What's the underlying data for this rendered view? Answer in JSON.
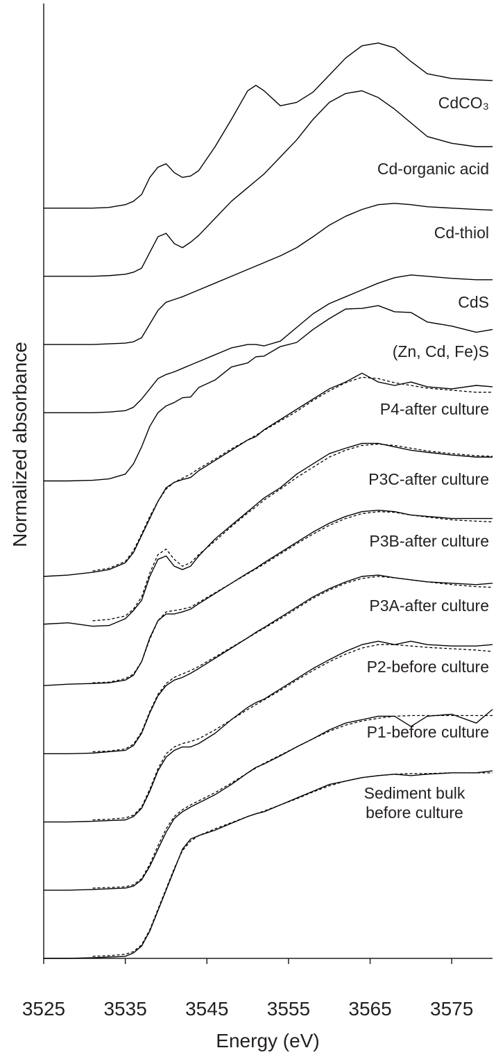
{
  "chart_data": {
    "type": "line",
    "x_label": "Energy (eV)",
    "y_label": "Normalized absorbance",
    "xlim": [
      3525,
      3580
    ],
    "ylim": [
      1,
      15
    ],
    "xticks": [
      3525,
      3535,
      3545,
      3555,
      3565,
      3575
    ],
    "color": "#000000",
    "x": [
      3525,
      3528,
      3531,
      3533,
      3535,
      3536,
      3537,
      3538,
      3539,
      3540,
      3541,
      3542,
      3543,
      3544,
      3546,
      3548,
      3550,
      3551,
      3552,
      3554,
      3556,
      3558,
      3560,
      3562,
      3564,
      3566,
      3568,
      3570,
      3572,
      3575,
      3578,
      3580
    ],
    "series": [
      {
        "name": "CdCO₃",
        "values": [
          12,
          12,
          12,
          12.01,
          12.05,
          12.1,
          12.2,
          12.45,
          12.6,
          12.65,
          12.52,
          12.45,
          12.47,
          12.55,
          12.9,
          13.3,
          13.72,
          13.8,
          13.72,
          13.5,
          13.55,
          13.7,
          13.95,
          14.2,
          14.38,
          14.42,
          14.35,
          14.15,
          13.97,
          13.9,
          13.88,
          13.87
        ]
      },
      {
        "name": "Cd-organic acid",
        "values": [
          11,
          11,
          11,
          11.01,
          11.03,
          11.06,
          11.12,
          11.35,
          11.58,
          11.63,
          11.48,
          11.42,
          11.5,
          11.6,
          11.85,
          12.1,
          12.3,
          12.4,
          12.5,
          12.75,
          13,
          13.3,
          13.55,
          13.68,
          13.72,
          13.62,
          13.45,
          13.25,
          13.05,
          12.95,
          12.9,
          12.9
        ]
      },
      {
        "name": "Cd-thiol",
        "values": [
          10,
          10,
          10,
          10.01,
          10.02,
          10.04,
          10.1,
          10.3,
          10.5,
          10.62,
          10.66,
          10.7,
          10.75,
          10.8,
          10.9,
          11,
          11.1,
          11.15,
          11.2,
          11.3,
          11.42,
          11.58,
          11.75,
          11.88,
          11.98,
          12.05,
          12.07,
          12.05,
          12.02,
          12,
          11.98,
          11.97
        ]
      },
      {
        "name": "CdS",
        "values": [
          9,
          9,
          9,
          9.01,
          9.03,
          9.08,
          9.2,
          9.35,
          9.5,
          9.56,
          9.6,
          9.65,
          9.7,
          9.75,
          9.85,
          9.95,
          10,
          10,
          9.98,
          10.05,
          10.25,
          10.45,
          10.6,
          10.7,
          10.8,
          10.9,
          10.98,
          11.02,
          11,
          10.97,
          10.95,
          10.95
        ]
      },
      {
        "name": "(Zn, Cd, Fe)S",
        "values": [
          8,
          8,
          8.01,
          8.03,
          8.1,
          8.25,
          8.5,
          8.8,
          9,
          9.1,
          9.15,
          9.22,
          9.23,
          9.37,
          9.48,
          9.67,
          9.73,
          9.82,
          9.83,
          9.97,
          10.03,
          10.22,
          10.38,
          10.52,
          10.53,
          10.57,
          10.48,
          10.47,
          10.33,
          10.27,
          10.18,
          10.22
        ]
      },
      {
        "name": "P4-after culture",
        "values": [
          6.6,
          6.62,
          6.66,
          6.7,
          6.8,
          6.95,
          7.2,
          7.45,
          7.7,
          7.9,
          7.98,
          8.02,
          8.05,
          8.15,
          8.3,
          8.45,
          8.6,
          8.65,
          8.75,
          8.9,
          9.05,
          9.2,
          9.35,
          9.45,
          9.58,
          9.45,
          9.4,
          9.45,
          9.38,
          9.35,
          9.4,
          9.38
        ],
        "fit": [
          null,
          null,
          6.68,
          6.72,
          6.82,
          6.98,
          7.22,
          7.48,
          7.7,
          7.88,
          7.98,
          8.04,
          8.1,
          8.18,
          8.32,
          8.47,
          8.6,
          8.67,
          8.74,
          8.88,
          9.02,
          9.18,
          9.32,
          9.44,
          9.52,
          9.5,
          9.44,
          9.4,
          9.36,
          9.33,
          9.3,
          9.3
        ]
      },
      {
        "name": "P3C-after culture",
        "values": [
          5.9,
          5.92,
          5.87,
          5.88,
          5.98,
          6.1,
          6.25,
          6.6,
          6.85,
          6.9,
          6.75,
          6.7,
          6.75,
          6.9,
          7.15,
          7.35,
          7.55,
          7.65,
          7.75,
          7.9,
          8.1,
          8.25,
          8.4,
          8.48,
          8.55,
          8.55,
          8.5,
          8.45,
          8.42,
          8.38,
          8.35,
          8.35
        ],
        "fit": [
          null,
          null,
          5.95,
          5.97,
          6.02,
          6.12,
          6.3,
          6.65,
          6.92,
          7.0,
          6.85,
          6.75,
          6.8,
          6.92,
          7.12,
          7.33,
          7.53,
          7.62,
          7.72,
          7.88,
          8.05,
          8.2,
          8.35,
          8.45,
          8.52,
          8.54,
          8.52,
          8.48,
          8.44,
          8.4,
          8.37,
          8.36
        ]
      },
      {
        "name": "P3B-after culture",
        "values": [
          5,
          5.02,
          5.03,
          5.04,
          5.08,
          5.15,
          5.35,
          5.7,
          5.95,
          6.05,
          6.05,
          6.08,
          6.12,
          6.2,
          6.35,
          6.5,
          6.65,
          6.72,
          6.8,
          6.95,
          7.1,
          7.25,
          7.38,
          7.48,
          7.55,
          7.57,
          7.55,
          7.5,
          7.48,
          7.45,
          7.45,
          7.45
        ],
        "fit": [
          null,
          null,
          5.04,
          5.05,
          5.1,
          5.17,
          5.35,
          5.68,
          5.95,
          6.08,
          6.1,
          6.12,
          6.15,
          6.22,
          6.36,
          6.5,
          6.64,
          6.71,
          6.78,
          6.93,
          7.08,
          7.22,
          7.35,
          7.45,
          7.52,
          7.55,
          7.54,
          7.5,
          7.47,
          7.43,
          7.41,
          7.4
        ]
      },
      {
        "name": "P3A-after culture",
        "values": [
          4,
          4,
          4.01,
          4.03,
          4.05,
          4.12,
          4.3,
          4.6,
          4.85,
          5,
          5.08,
          5.12,
          5.18,
          5.25,
          5.4,
          5.55,
          5.7,
          5.78,
          5.85,
          6,
          6.15,
          6.3,
          6.42,
          6.52,
          6.6,
          6.62,
          6.58,
          6.55,
          6.52,
          6.5,
          6.48,
          6.5
        ],
        "fit": [
          null,
          null,
          4.03,
          4.04,
          4.07,
          4.14,
          4.32,
          4.62,
          4.87,
          5.03,
          5.12,
          5.17,
          5.22,
          5.28,
          5.42,
          5.56,
          5.7,
          5.77,
          5.84,
          5.98,
          6.13,
          6.28,
          6.4,
          6.5,
          6.57,
          6.6,
          6.58,
          6.55,
          6.52,
          6.48,
          6.45,
          6.44
        ]
      },
      {
        "name": "P2-before culture",
        "values": [
          3,
          3,
          3.01,
          3.02,
          3.03,
          3.08,
          3.2,
          3.45,
          3.75,
          3.95,
          4.05,
          4.1,
          4.1,
          4.15,
          4.3,
          4.5,
          4.68,
          4.75,
          4.8,
          4.95,
          5.1,
          5.25,
          5.38,
          5.5,
          5.6,
          5.65,
          5.6,
          5.65,
          5.6,
          5.58,
          5.58,
          5.6
        ],
        "fit": [
          null,
          null,
          3.03,
          3.04,
          3.06,
          3.1,
          3.22,
          3.48,
          3.78,
          4.0,
          4.1,
          4.15,
          4.18,
          4.22,
          4.35,
          4.5,
          4.65,
          4.72,
          4.79,
          4.93,
          5.08,
          5.22,
          5.35,
          5.46,
          5.55,
          5.6,
          5.6,
          5.58,
          5.56,
          5.54,
          5.52,
          5.5
        ]
      },
      {
        "name": "P1-before culture",
        "values": [
          2,
          2,
          2.01,
          2.02,
          2.03,
          2.06,
          2.15,
          2.35,
          2.6,
          2.85,
          3.05,
          3.15,
          3.22,
          3.28,
          3.4,
          3.55,
          3.72,
          3.8,
          3.85,
          3.97,
          4.1,
          4.22,
          4.35,
          4.45,
          4.5,
          4.55,
          4.55,
          4.4,
          4.55,
          4.58,
          4.45,
          4.65
        ],
        "fit": [
          null,
          null,
          2.03,
          2.04,
          2.05,
          2.08,
          2.17,
          2.38,
          2.65,
          2.9,
          3.08,
          3.18,
          3.25,
          3.31,
          3.43,
          3.57,
          3.72,
          3.79,
          3.86,
          3.98,
          4.1,
          4.22,
          4.33,
          4.42,
          4.48,
          4.52,
          4.55,
          4.56,
          4.56,
          4.56,
          4.56,
          4.56
        ]
      },
      {
        "name": "Sediment bulk before culture",
        "values": [
          1,
          1,
          1.01,
          1.02,
          1.03,
          1.08,
          1.18,
          1.4,
          1.7,
          2,
          2.3,
          2.6,
          2.75,
          2.8,
          2.88,
          2.98,
          3.08,
          3.12,
          3.15,
          3.25,
          3.35,
          3.45,
          3.55,
          3.6,
          3.65,
          3.68,
          3.7,
          3.68,
          3.7,
          3.72,
          3.72,
          3.75
        ],
        "fit": [
          null,
          null,
          1.03,
          1.04,
          1.06,
          1.1,
          1.2,
          1.42,
          1.72,
          2.02,
          2.32,
          2.58,
          2.72,
          2.8,
          2.9,
          2.99,
          3.08,
          3.12,
          3.16,
          3.25,
          3.34,
          3.44,
          3.53,
          3.6,
          3.65,
          3.68,
          3.7,
          3.71,
          3.71,
          3.72,
          3.72,
          3.72
        ]
      }
    ]
  }
}
